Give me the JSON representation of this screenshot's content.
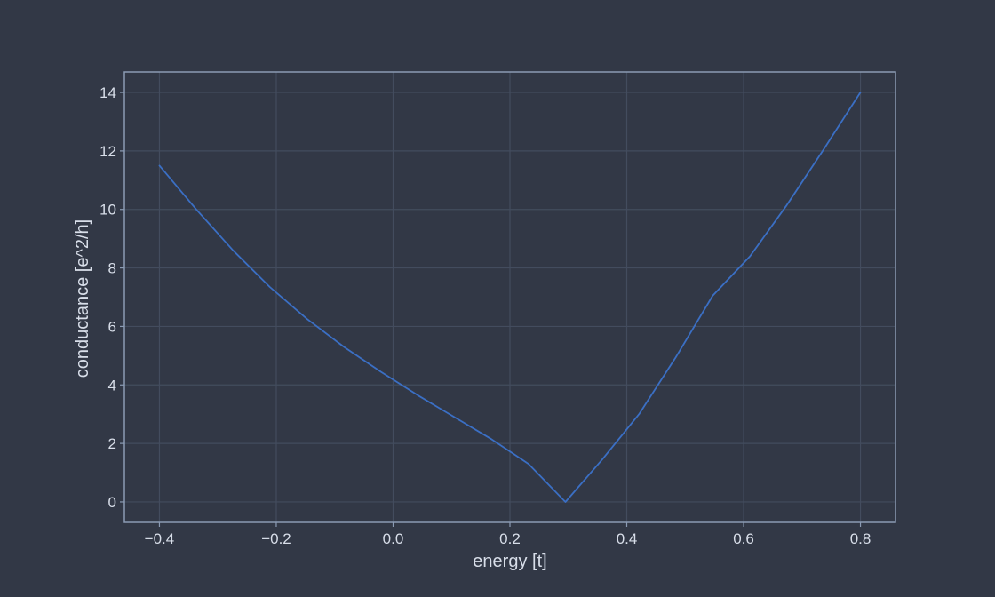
{
  "chart_data": {
    "type": "line",
    "xlabel": "energy [t]",
    "ylabel": "conductance [e^2/h]",
    "xlim": [
      -0.46,
      0.86
    ],
    "ylim": [
      -0.7,
      14.7
    ],
    "xticks": [
      -0.4,
      -0.2,
      0.0,
      0.2,
      0.4,
      0.6,
      0.8
    ],
    "xtick_labels": [
      "−0.4",
      "−0.2",
      "0.0",
      "0.2",
      "0.4",
      "0.6",
      "0.8"
    ],
    "yticks": [
      0,
      2,
      4,
      6,
      8,
      10,
      12,
      14
    ],
    "ytick_labels": [
      "0",
      "2",
      "4",
      "6",
      "8",
      "10",
      "12",
      "14"
    ],
    "grid": true,
    "series": [
      {
        "x": [
          -0.4,
          -0.337,
          -0.274,
          -0.211,
          -0.147,
          -0.084,
          -0.021,
          0.042,
          0.105,
          0.168,
          0.232,
          0.295,
          0.358,
          0.421,
          0.484,
          0.547,
          0.611,
          0.674,
          0.737,
          0.8
        ],
        "y": [
          11.5,
          10.0,
          8.6,
          7.35,
          6.25,
          5.3,
          4.45,
          3.65,
          2.9,
          2.15,
          1.3,
          0.0,
          1.45,
          3.0,
          4.95,
          7.05,
          8.4,
          10.15,
          12.05,
          14.0
        ]
      }
    ],
    "colors": {
      "background": "#323846",
      "grid": "#434c5e",
      "frame": "#8b9bb4",
      "line": "#3b6fc4",
      "text": "#d8dee9"
    }
  }
}
